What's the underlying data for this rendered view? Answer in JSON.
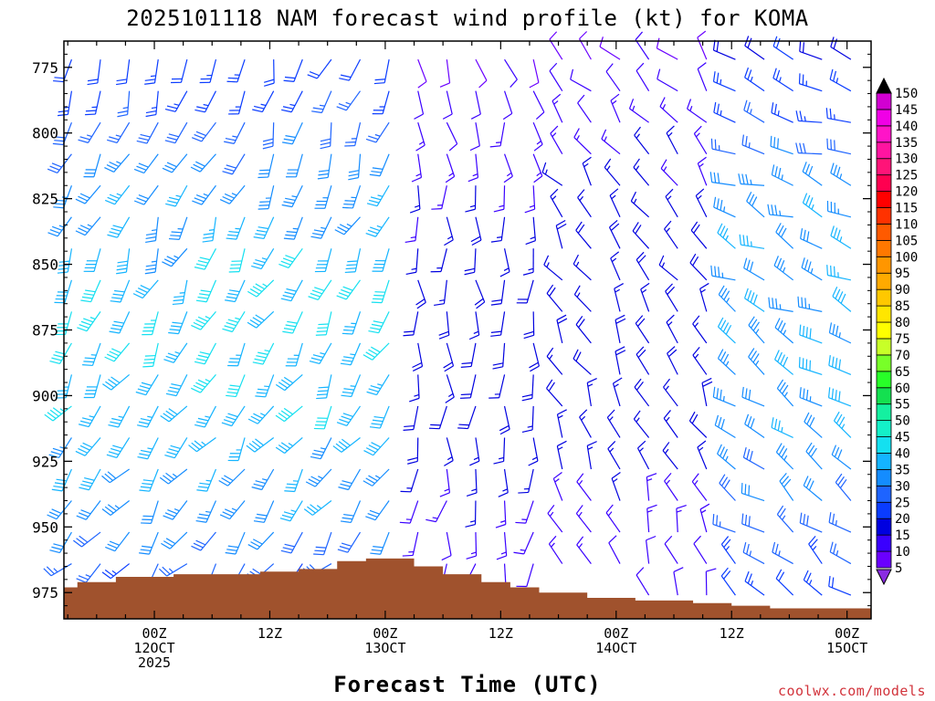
{
  "chart_data": {
    "type": "wind-barb-profile",
    "title": "2025101118 NAM forecast wind profile (kt) for KOMA",
    "xlabel": "Forecast Time (UTC)",
    "credit": "coolwx.com/models",
    "y_axis": {
      "quantity": "pressure (hPa)",
      "range": [
        985,
        765
      ],
      "ticks": [
        775,
        800,
        825,
        850,
        875,
        900,
        925,
        950,
        975
      ]
    },
    "x_axis": {
      "range_hours": [
        -9.4,
        74.5
      ],
      "ticks": [
        {
          "hour": 0,
          "lines": [
            "00Z",
            "12OCT",
            "2025"
          ]
        },
        {
          "hour": 12,
          "lines": [
            "12Z"
          ]
        },
        {
          "hour": 24,
          "lines": [
            "00Z",
            "13OCT"
          ]
        },
        {
          "hour": 36,
          "lines": [
            "12Z"
          ]
        },
        {
          "hour": 48,
          "lines": [
            "00Z",
            "14OCT"
          ]
        },
        {
          "hour": 60,
          "lines": [
            "12Z"
          ]
        },
        {
          "hour": 72,
          "lines": [
            "00Z",
            "15OCT"
          ]
        }
      ]
    },
    "colorbar": {
      "unit": "kt",
      "levels": [
        5,
        10,
        15,
        20,
        25,
        30,
        35,
        40,
        45,
        50,
        55,
        60,
        65,
        70,
        75,
        80,
        85,
        90,
        95,
        100,
        105,
        110,
        115,
        120,
        125,
        130,
        135,
        140,
        145,
        150
      ],
      "colors": [
        "#8a2be2",
        "#6a00ff",
        "#3a00ff",
        "#0000e0",
        "#0a3cff",
        "#1e64ff",
        "#148cff",
        "#14b4ff",
        "#14e0f0",
        "#14f0c8",
        "#14f0a0",
        "#14e050",
        "#28ff28",
        "#78ff28",
        "#c8ff28",
        "#ffff00",
        "#ffe600",
        "#ffc800",
        "#ffaa00",
        "#ff9600",
        "#ff7800",
        "#ff5a00",
        "#ff3200",
        "#ff0000",
        "#ff0050",
        "#ff1478",
        "#ff14a0",
        "#ff14c8",
        "#f000e6",
        "#d200d2"
      ]
    },
    "surface_pressure": [
      {
        "hour": -9.4,
        "p": 973
      },
      {
        "hour": -8,
        "p": 971
      },
      {
        "hour": -4,
        "p": 969
      },
      {
        "hour": 0,
        "p": 969
      },
      {
        "hour": 2,
        "p": 968
      },
      {
        "hour": 7,
        "p": 968
      },
      {
        "hour": 11,
        "p": 967
      },
      {
        "hour": 15,
        "p": 966
      },
      {
        "hour": 19,
        "p": 963
      },
      {
        "hour": 22,
        "p": 962
      },
      {
        "hour": 25,
        "p": 962
      },
      {
        "hour": 27,
        "p": 965
      },
      {
        "hour": 30,
        "p": 968
      },
      {
        "hour": 34,
        "p": 971
      },
      {
        "hour": 37,
        "p": 973
      },
      {
        "hour": 40,
        "p": 975
      },
      {
        "hour": 45,
        "p": 977
      },
      {
        "hour": 50,
        "p": 978
      },
      {
        "hour": 56,
        "p": 979
      },
      {
        "hour": 60,
        "p": 980
      },
      {
        "hour": 64,
        "p": 981
      },
      {
        "hour": 68,
        "p": 981
      },
      {
        "hour": 74.5,
        "p": 981
      }
    ],
    "wind_regimes": [
      {
        "hours": [
          -9.4,
          27
        ],
        "pressure": [
          770,
          985
        ],
        "direction_deg": 210,
        "speed_kt_min": 10,
        "speed_kt_max": 45
      },
      {
        "hours": [
          27,
          40
        ],
        "pressure": [
          770,
          985
        ],
        "direction_deg": 180,
        "speed_kt_min": 5,
        "speed_kt_max": 20
      },
      {
        "hours": [
          40,
          58
        ],
        "pressure": [
          770,
          985
        ],
        "direction_deg": 330,
        "speed_kt_min": 5,
        "speed_kt_max": 20
      },
      {
        "hours": [
          58,
          74.5
        ],
        "pressure": [
          770,
          985
        ],
        "direction_deg": 300,
        "speed_kt_min": 10,
        "speed_kt_max": 40
      }
    ]
  }
}
